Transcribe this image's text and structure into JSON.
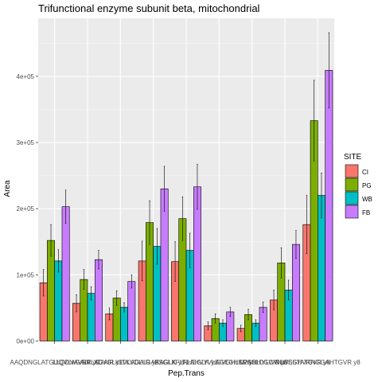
{
  "chart_data": {
    "type": "bar",
    "title": "Trifunctional enzyme subunit beta, mitochondrial",
    "xlabel": "Pep.Trans",
    "ylabel": "Area",
    "ylim": [
      0,
      480000
    ],
    "yticks": [
      0,
      100000,
      200000,
      300000,
      400000
    ],
    "ytick_labels": [
      "0e+00",
      "1e+05",
      "2e+05",
      "3e+05",
      "4e+05"
    ],
    "grid": true,
    "legend_position": "right",
    "legend_title": "SITE",
    "categories": [
      "AAQDNGLATGUQVLAGAIR y9",
      "LLQDNAVRVLAGAIR y9",
      "SALYDVGLKLVLAGAIR y9",
      "TKVDLLGAKAGLK y6",
      "FSGLKFLNHEGLK y6",
      "FLAHVYVLAGEGHKR y8",
      "GVGHLSVGHHYLWR y8",
      "LPASLDGCVNWSSTATGVR y8",
      "SLGEGHVRNGGAHTGVR y8"
    ],
    "series": [
      {
        "name": "CI",
        "color": "#F8766D",
        "values": [
          88000,
          57000,
          41000,
          121000,
          120000,
          23000,
          19000,
          62000,
          176000
        ],
        "errors": [
          20000,
          13000,
          9000,
          30000,
          30000,
          6000,
          5000,
          15000,
          44000
        ]
      },
      {
        "name": "PG",
        "color": "#7CAE00",
        "values": [
          152000,
          93000,
          65000,
          179000,
          185000,
          34000,
          40000,
          118000,
          333000
        ],
        "errors": [
          24000,
          15000,
          11000,
          33000,
          33000,
          7000,
          8000,
          23000,
          61000
        ]
      },
      {
        "name": "WB",
        "color": "#00BFC4",
        "values": [
          121000,
          72000,
          51000,
          143000,
          137000,
          27000,
          27000,
          77000,
          220000
        ],
        "errors": [
          17000,
          10000,
          7000,
          27000,
          26000,
          5000,
          5000,
          15000,
          34000
        ]
      },
      {
        "name": "FB",
        "color": "#C77CFF",
        "values": [
          203000,
          123000,
          90000,
          230000,
          233000,
          44000,
          51000,
          146000,
          409000
        ],
        "errors": [
          25000,
          14000,
          10000,
          34000,
          34000,
          7000,
          8000,
          21000,
          57000
        ]
      }
    ]
  }
}
